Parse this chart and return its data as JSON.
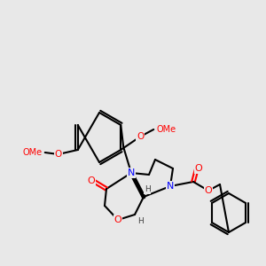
{
  "background_color": "#e8e8e8",
  "bond_color": "#000000",
  "atom_colors": {
    "N": "#0000ff",
    "O": "#ff0000",
    "C": "#000000",
    "H": "#404040"
  },
  "line_width": 1.5,
  "font_size": 7.5
}
